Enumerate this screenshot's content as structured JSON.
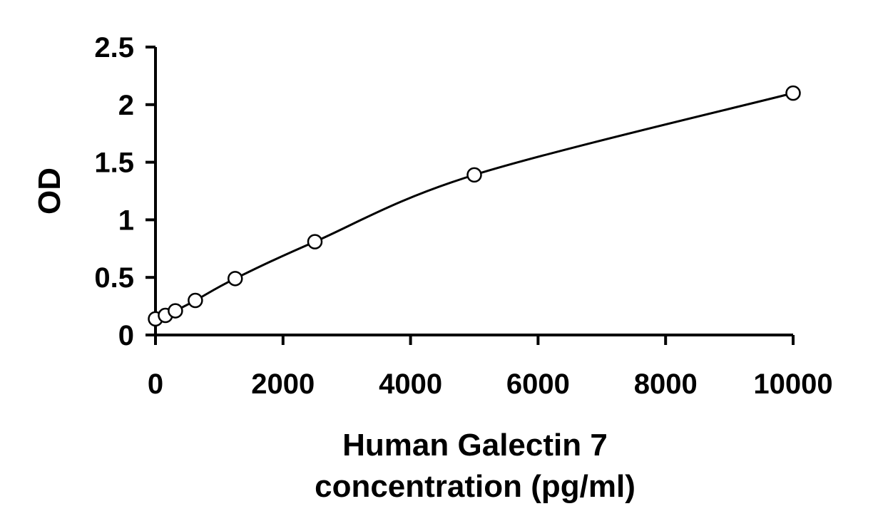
{
  "chart_data": {
    "type": "scatter",
    "title": "",
    "xlabel_lines": [
      "Human Galectin 7",
      "concentration (pg/ml)"
    ],
    "ylabel": "OD",
    "xlim": [
      0,
      10000
    ],
    "ylim": [
      0,
      2.5
    ],
    "x_ticks": [
      0,
      2000,
      4000,
      6000,
      8000,
      10000
    ],
    "x_tick_labels": [
      "0",
      "2000",
      "4000",
      "6000",
      "8000",
      "10000"
    ],
    "y_ticks": [
      0,
      0.5,
      1,
      1.5,
      2,
      2.5
    ],
    "y_tick_labels": [
      "0",
      "0.5",
      "1",
      "1.5",
      "2",
      "2.5"
    ],
    "grid": false,
    "legend": "none",
    "series": [
      {
        "marker": "open-circle",
        "fit": "smooth-curve",
        "x": [
          0,
          156,
          312,
          625,
          1250,
          2500,
          5000,
          10000
        ],
        "y": [
          0.14,
          0.17,
          0.21,
          0.3,
          0.49,
          0.81,
          1.39,
          2.1
        ]
      }
    ],
    "colors": {
      "axis": "#000000",
      "series": "#000000",
      "marker_fill": "#ffffff"
    }
  }
}
